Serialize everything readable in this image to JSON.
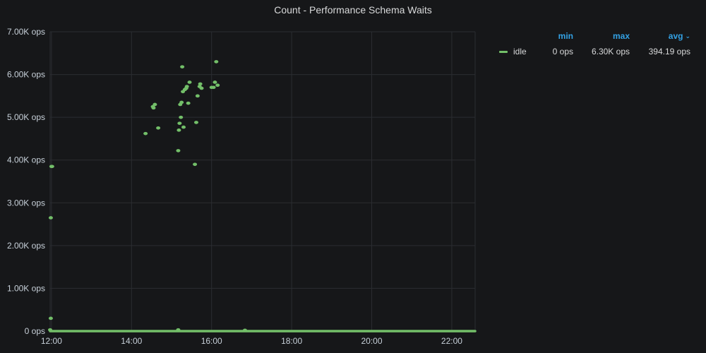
{
  "panel": {
    "title": "Count - Performance Schema Waits"
  },
  "colors": {
    "background": "#161719",
    "grid": "#2b2d31",
    "series": "#73bf69",
    "accent": "#33a2e5"
  },
  "legend": {
    "headers": {
      "min": "min",
      "max": "max",
      "avg": "avg"
    },
    "sort_icon": "chevron-down-icon",
    "rows": [
      {
        "name": "idle",
        "min": "0 ops",
        "max": "6.30K ops",
        "avg": "394.19 ops"
      }
    ]
  },
  "chart_data": {
    "type": "scatter",
    "title": "Count - Performance Schema Waits",
    "x_unit": "time (HH:MM)",
    "xlim": [
      "11:58",
      "22:35"
    ],
    "ylim": [
      0,
      7000
    ],
    "y_ticks": [
      "0 ops",
      "1.00K ops",
      "2.00K ops",
      "3.00K ops",
      "4.00K ops",
      "5.00K ops",
      "6.00K ops",
      "7.00K ops"
    ],
    "y_tick_values": [
      0,
      1000,
      2000,
      3000,
      4000,
      5000,
      6000,
      7000
    ],
    "x_ticks": [
      "12:00",
      "14:00",
      "16:00",
      "18:00",
      "20:00",
      "22:00"
    ],
    "grid": true,
    "legend_position": "right",
    "series": [
      {
        "name": "idle",
        "color": "#73bf69",
        "points": [
          {
            "x": "11:58",
            "y": 30
          },
          {
            "x": "11:59",
            "y": 300
          },
          {
            "x": "11:59",
            "y": 2650
          },
          {
            "x": "12:00",
            "y": 3850
          },
          {
            "x": "12:01",
            "y": 3850
          },
          {
            "x": "14:21",
            "y": 4620
          },
          {
            "x": "14:32",
            "y": 5250
          },
          {
            "x": "14:33",
            "y": 5220
          },
          {
            "x": "14:35",
            "y": 5300
          },
          {
            "x": "14:40",
            "y": 4750
          },
          {
            "x": "15:10",
            "y": 4220
          },
          {
            "x": "15:11",
            "y": 4700
          },
          {
            "x": "15:12",
            "y": 4860
          },
          {
            "x": "15:13",
            "y": 5300
          },
          {
            "x": "15:14",
            "y": 5000
          },
          {
            "x": "15:15",
            "y": 5350
          },
          {
            "x": "15:16",
            "y": 6180
          },
          {
            "x": "15:17",
            "y": 5600
          },
          {
            "x": "15:18",
            "y": 4770
          },
          {
            "x": "15:20",
            "y": 5650
          },
          {
            "x": "15:22",
            "y": 5680
          },
          {
            "x": "15:23",
            "y": 5720
          },
          {
            "x": "15:25",
            "y": 5330
          },
          {
            "x": "15:27",
            "y": 5820
          },
          {
            "x": "15:35",
            "y": 3900
          },
          {
            "x": "15:37",
            "y": 4880
          },
          {
            "x": "15:39",
            "y": 5500
          },
          {
            "x": "15:42",
            "y": 5720
          },
          {
            "x": "15:43",
            "y": 5780
          },
          {
            "x": "15:45",
            "y": 5680
          },
          {
            "x": "16:00",
            "y": 5700
          },
          {
            "x": "16:03",
            "y": 5700
          },
          {
            "x": "16:05",
            "y": 5820
          },
          {
            "x": "16:07",
            "y": 6300
          },
          {
            "x": "16:09",
            "y": 5750
          },
          {
            "x": "15:10",
            "y": 30
          },
          {
            "x": "16:50",
            "y": 20
          }
        ],
        "baseline": {
          "x_start": "11:58",
          "x_end": "22:35",
          "y": 0
        }
      }
    ]
  }
}
